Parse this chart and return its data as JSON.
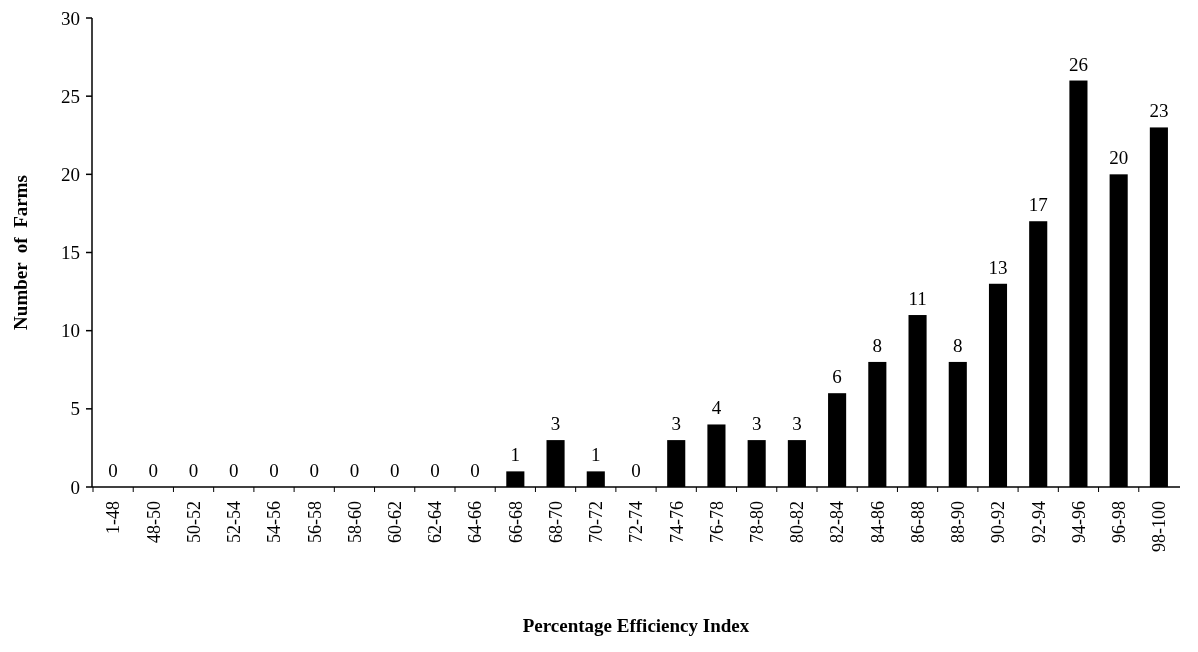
{
  "chart_data": {
    "type": "bar",
    "xlabel": "Percentage Efficiency Index",
    "ylabel": "Number  of  Farms",
    "categories": [
      "1-48",
      "48-50",
      "50-52",
      "52-54",
      "54-56",
      "56-58",
      "58-60",
      "60-62",
      "62-64",
      "64-66",
      "66-68",
      "68-70",
      "70-72",
      "72-74",
      "74-76",
      "76-78",
      "78-80",
      "80-82",
      "82-84",
      "84-86",
      "86-88",
      "88-90",
      "90-92",
      "92-94",
      "94-96",
      "96-98",
      "98-100"
    ],
    "values": [
      0,
      0,
      0,
      0,
      0,
      0,
      0,
      0,
      0,
      0,
      1,
      3,
      1,
      0,
      3,
      4,
      3,
      3,
      6,
      8,
      11,
      8,
      13,
      17,
      26,
      20,
      23
    ],
    "color": "#000000",
    "ylim": [
      0,
      30
    ],
    "yticks": [
      0,
      5,
      10,
      15,
      20,
      25,
      30
    ],
    "data_labels": true
  }
}
